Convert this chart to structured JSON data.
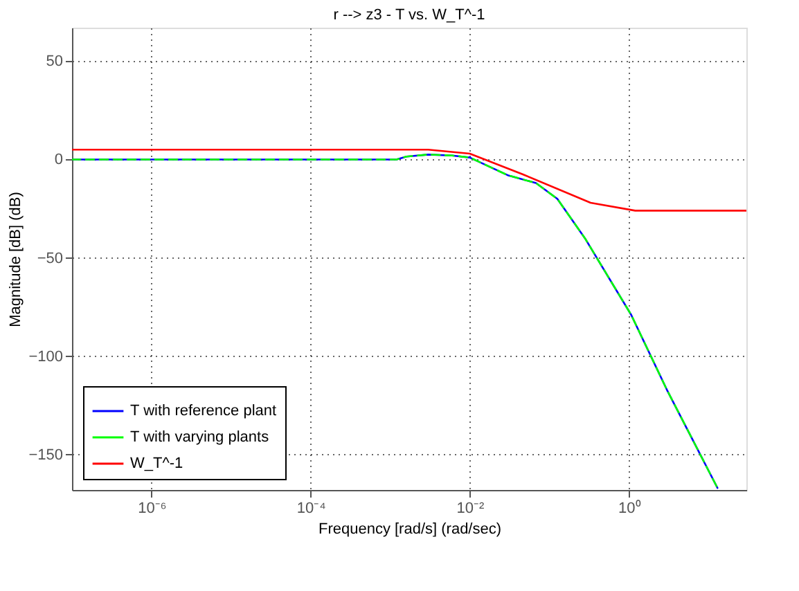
{
  "chart_data": {
    "type": "line",
    "title": "r --> z3  -  T vs. W_T^-1",
    "xlabel": "Frequency [rad/s]  (rad/sec)",
    "ylabel": "Magnitude [dB] (dB)",
    "log": "x",
    "xlim": [
      1e-07,
      30
    ],
    "ylim": [
      -168,
      67
    ],
    "xticks": [
      {
        "value": 1e-06,
        "label": "10⁻⁶"
      },
      {
        "value": 0.0001,
        "label": "10⁻⁴"
      },
      {
        "value": 0.01,
        "label": "10⁻²"
      },
      {
        "value": 1,
        "label": "10⁰"
      }
    ],
    "yticks": [
      -150,
      -100,
      -50,
      0,
      50
    ],
    "grid": true,
    "legend": "bottom left",
    "line_style": "solid",
    "marker": "none",
    "series": [
      {
        "name": "T with reference plant",
        "color": "#0000ff",
        "x": [
          1e-07,
          0.0012,
          0.0016,
          0.003,
          0.006,
          0.01,
          0.03,
          0.068,
          0.126,
          0.28,
          1.07,
          3,
          13
        ],
        "values": [
          0,
          0,
          1.5,
          2.5,
          2,
          1,
          -8,
          -12,
          -20,
          -40,
          -79,
          -117,
          -167
        ]
      },
      {
        "name": "T with varying plants",
        "color": "#00ff00",
        "line_style": "dashed",
        "x": [
          1e-07,
          0.0012,
          0.0016,
          0.003,
          0.006,
          0.01,
          0.03,
          0.068,
          0.126,
          0.28,
          1.07,
          3,
          13
        ],
        "values": [
          0,
          0,
          1.5,
          2.5,
          2,
          1,
          -8,
          -12,
          -20,
          -40,
          -79,
          -117,
          -167
        ]
      },
      {
        "name": "W_T^-1",
        "color": "#ff0000",
        "x": [
          1e-07,
          0.003,
          0.01,
          0.046,
          0.33,
          1.2,
          30
        ],
        "values": [
          5,
          5,
          3,
          -7.5,
          -22,
          -26,
          -26
        ]
      }
    ]
  }
}
